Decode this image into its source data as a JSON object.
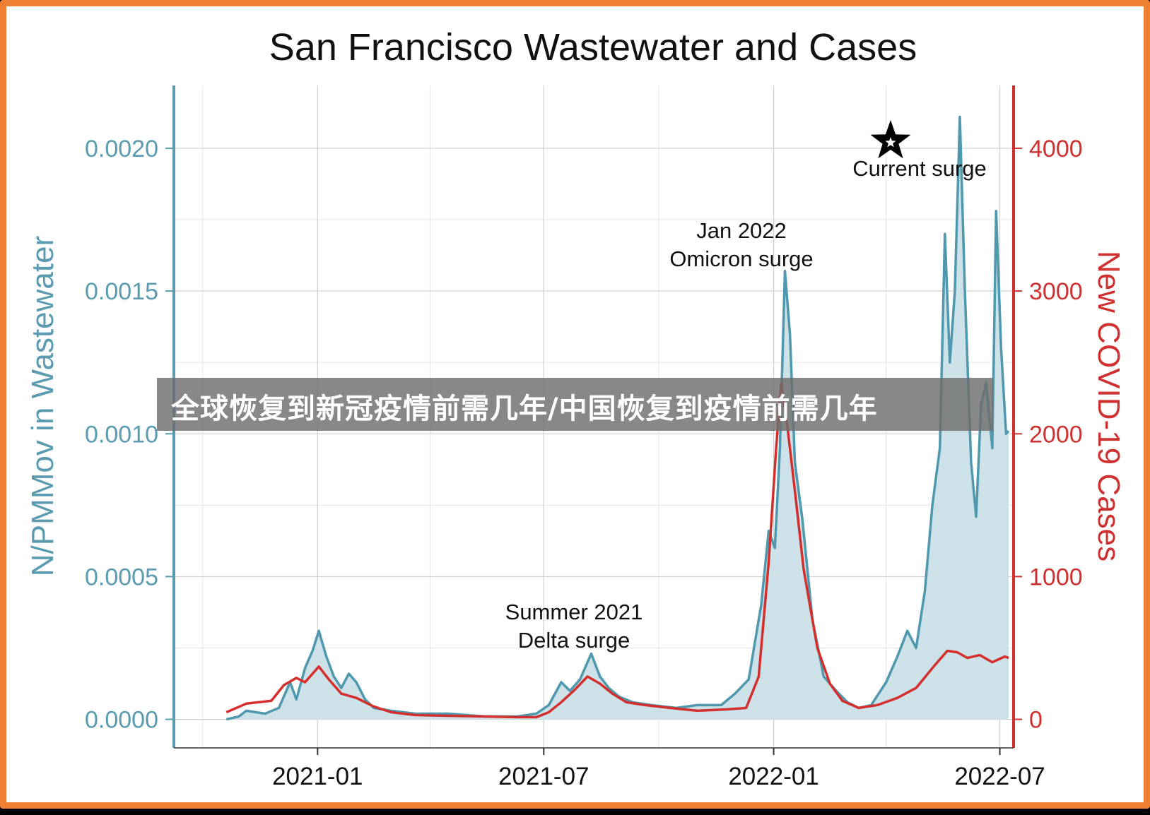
{
  "overlay": {
    "caption": "全球恢复到新冠疫情前需几年/中国恢复到疫情前需几年"
  },
  "colors": {
    "frame": "#ee7f33",
    "wastewater_line": "#4f98ad",
    "wastewater_fill": "#cde1e9",
    "cases_line": "#d42f2d",
    "left_axis": "#5b9bb0",
    "right_axis": "#cf3030"
  },
  "chart_data": {
    "type": "line",
    "title": "San Francisco Wastewater and Cases",
    "xlabel": "",
    "ylabel": "N/PMMov in Wastewater",
    "ylabel_right": "New COVID-19 Cases",
    "x_ticks": [
      "2021-01",
      "2021-07",
      "2022-01",
      "2022-07"
    ],
    "y_ticks_left": [
      "0.0000",
      "0.0005",
      "0.0010",
      "0.0015",
      "0.0020"
    ],
    "y_ticks_right": [
      "0",
      "1000",
      "2000",
      "3000",
      "4000"
    ],
    "ylim_left": [
      -0.0001,
      0.00222
    ],
    "ylim_right": [
      -200,
      4440
    ],
    "xlim": [
      "2020-09-08",
      "2022-07-12"
    ],
    "grid": true,
    "annotations": [
      {
        "lines": [
          "Summer 2021",
          "Delta surge"
        ]
      },
      {
        "lines": [
          "Jan 2022",
          "Omicron surge"
        ]
      },
      {
        "lines": [
          "Current surge"
        ],
        "marker": "star"
      }
    ],
    "series": [
      {
        "axis": "left",
        "style": "area-line",
        "points": [
          [
            "2020-10-20",
            0.0
          ],
          [
            "2020-10-30",
            1e-05
          ],
          [
            "2020-11-05",
            3e-05
          ],
          [
            "2020-11-20",
            2e-05
          ],
          [
            "2020-12-01",
            4e-05
          ],
          [
            "2020-12-10",
            0.00013
          ],
          [
            "2020-12-15",
            7e-05
          ],
          [
            "2020-12-22",
            0.00018
          ],
          [
            "2020-12-28",
            0.00024
          ],
          [
            "2021-01-02",
            0.00031
          ],
          [
            "2021-01-08",
            0.00022
          ],
          [
            "2021-01-14",
            0.00015
          ],
          [
            "2021-01-20",
            0.00011
          ],
          [
            "2021-01-26",
            0.00016
          ],
          [
            "2021-02-01",
            0.00013
          ],
          [
            "2021-02-08",
            7e-05
          ],
          [
            "2021-02-15",
            4e-05
          ],
          [
            "2021-03-01",
            3e-05
          ],
          [
            "2021-03-20",
            2e-05
          ],
          [
            "2021-04-15",
            2e-05
          ],
          [
            "2021-05-15",
            1e-05
          ],
          [
            "2021-06-10",
            1e-05
          ],
          [
            "2021-06-25",
            2e-05
          ],
          [
            "2021-07-05",
            5e-05
          ],
          [
            "2021-07-15",
            0.00013
          ],
          [
            "2021-07-22",
            0.0001
          ],
          [
            "2021-07-30",
            0.00014
          ],
          [
            "2021-08-08",
            0.00023
          ],
          [
            "2021-08-15",
            0.00015
          ],
          [
            "2021-08-22",
            0.00011
          ],
          [
            "2021-08-30",
            8e-05
          ],
          [
            "2021-09-10",
            6e-05
          ],
          [
            "2021-09-25",
            5e-05
          ],
          [
            "2021-10-15",
            4e-05
          ],
          [
            "2021-11-01",
            5e-05
          ],
          [
            "2021-11-20",
            5e-05
          ],
          [
            "2021-12-01",
            9e-05
          ],
          [
            "2021-12-12",
            0.00014
          ],
          [
            "2021-12-22",
            0.0004
          ],
          [
            "2021-12-28",
            0.00066
          ],
          [
            "2022-01-02",
            0.0006
          ],
          [
            "2022-01-06",
            0.00095
          ],
          [
            "2022-01-10",
            0.00157
          ],
          [
            "2022-01-14",
            0.00135
          ],
          [
            "2022-01-18",
            0.0009
          ],
          [
            "2022-01-24",
            0.0007
          ],
          [
            "2022-02-01",
            0.00035
          ],
          [
            "2022-02-10",
            0.00015
          ],
          [
            "2022-02-20",
            0.0001
          ],
          [
            "2022-03-01",
            6e-05
          ],
          [
            "2022-03-10",
            4e-05
          ],
          [
            "2022-03-20",
            5e-05
          ],
          [
            "2022-04-01",
            0.00013
          ],
          [
            "2022-04-10",
            0.00022
          ],
          [
            "2022-04-18",
            0.00031
          ],
          [
            "2022-04-25",
            0.00025
          ],
          [
            "2022-05-02",
            0.00045
          ],
          [
            "2022-05-08",
            0.00075
          ],
          [
            "2022-05-14",
            0.00095
          ],
          [
            "2022-05-18",
            0.0017
          ],
          [
            "2022-05-22",
            0.00125
          ],
          [
            "2022-05-26",
            0.0015
          ],
          [
            "2022-05-30",
            0.00211
          ],
          [
            "2022-06-03",
            0.0015
          ],
          [
            "2022-06-08",
            0.0009
          ],
          [
            "2022-06-12",
            0.00071
          ],
          [
            "2022-06-16",
            0.0011
          ],
          [
            "2022-06-20",
            0.00118
          ],
          [
            "2022-06-25",
            0.00095
          ],
          [
            "2022-06-28",
            0.00178
          ],
          [
            "2022-07-02",
            0.0013
          ],
          [
            "2022-07-06",
            0.001
          ],
          [
            "2022-07-08",
            0.00101
          ]
        ]
      },
      {
        "axis": "right",
        "style": "line",
        "points": [
          [
            "2020-10-20",
            50
          ],
          [
            "2020-11-05",
            110
          ],
          [
            "2020-11-25",
            130
          ],
          [
            "2020-12-05",
            240
          ],
          [
            "2020-12-15",
            290
          ],
          [
            "2020-12-22",
            260
          ],
          [
            "2021-01-02",
            370
          ],
          [
            "2021-01-10",
            280
          ],
          [
            "2021-01-20",
            180
          ],
          [
            "2021-02-01",
            150
          ],
          [
            "2021-02-15",
            90
          ],
          [
            "2021-03-01",
            50
          ],
          [
            "2021-03-20",
            30
          ],
          [
            "2021-04-15",
            25
          ],
          [
            "2021-05-15",
            20
          ],
          [
            "2021-06-10",
            15
          ],
          [
            "2021-06-25",
            15
          ],
          [
            "2021-07-05",
            50
          ],
          [
            "2021-07-15",
            120
          ],
          [
            "2021-07-25",
            200
          ],
          [
            "2021-08-05",
            300
          ],
          [
            "2021-08-15",
            250
          ],
          [
            "2021-08-25",
            180
          ],
          [
            "2021-09-05",
            120
          ],
          [
            "2021-09-20",
            100
          ],
          [
            "2021-10-10",
            80
          ],
          [
            "2021-11-01",
            60
          ],
          [
            "2021-11-25",
            70
          ],
          [
            "2021-12-10",
            80
          ],
          [
            "2021-12-20",
            300
          ],
          [
            "2021-12-28",
            1100
          ],
          [
            "2022-01-03",
            1900
          ],
          [
            "2022-01-07",
            2350
          ],
          [
            "2022-01-12",
            2050
          ],
          [
            "2022-01-18",
            1600
          ],
          [
            "2022-01-25",
            1050
          ],
          [
            "2022-02-05",
            500
          ],
          [
            "2022-02-15",
            250
          ],
          [
            "2022-02-25",
            130
          ],
          [
            "2022-03-10",
            80
          ],
          [
            "2022-03-25",
            100
          ],
          [
            "2022-04-10",
            150
          ],
          [
            "2022-04-25",
            220
          ],
          [
            "2022-05-10",
            380
          ],
          [
            "2022-05-20",
            480
          ],
          [
            "2022-05-28",
            470
          ],
          [
            "2022-06-05",
            430
          ],
          [
            "2022-06-15",
            450
          ],
          [
            "2022-06-25",
            400
          ],
          [
            "2022-07-05",
            440
          ],
          [
            "2022-07-08",
            430
          ]
        ]
      }
    ]
  }
}
